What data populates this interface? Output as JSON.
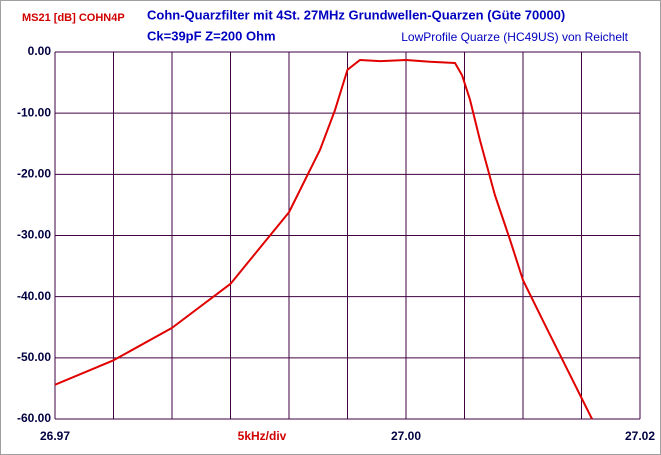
{
  "chart_data": {
    "type": "line",
    "title": "Cohn-Quarzfilter mit 4St.  27MHz Grundwellen-Quarzen (Güte 70000)",
    "subtitle": "Ck=39pF   Z=200 Ohm",
    "annotation": "LowProfile Quarze (HC49US) von Reichelt",
    "y_label": "MS21 [dB] COHN4P",
    "x_label": "5kHz/div",
    "x": [
      26.97,
      26.975,
      26.98,
      26.985,
      26.99,
      26.99265,
      26.99393,
      26.995,
      26.99607,
      26.99778,
      27.0,
      27.00205,
      27.00419,
      27.00479,
      27.00547,
      27.00632,
      27.0076,
      27.00889,
      27.01,
      27.01188,
      27.01402,
      27.0159
    ],
    "values": [
      -54.4,
      -50.4,
      -45.1,
      -37.9,
      -26.2,
      -16.0,
      -9.5,
      -2.9,
      -1.3,
      -1.5,
      -1.3,
      -1.6,
      -1.8,
      -3.8,
      -7.8,
      -14.4,
      -23.4,
      -30.7,
      -37.3,
      -44.6,
      -52.8,
      -60
    ],
    "color": "#e00000",
    "xlim": [
      26.97,
      27.02
    ],
    "ylim": [
      -60,
      0
    ],
    "xticks": [
      26.97,
      {
        "value": 26.975,
        "label": null
      },
      {
        "value": 26.98,
        "label": null
      },
      {
        "value": 26.985,
        "label": null
      },
      {
        "value": 26.99,
        "label": null
      },
      {
        "value": 26.995,
        "label": null
      },
      {
        "value": 27.0,
        "label": "27.00"
      },
      {
        "value": 27.005,
        "label": null
      },
      {
        "value": 27.01,
        "label": null
      },
      {
        "value": 27.015,
        "label": null
      },
      27.02
    ],
    "yticks": [
      {
        "value": 0,
        "label": "0.00"
      },
      {
        "value": -10,
        "label": "-10.00"
      },
      {
        "value": -20,
        "label": "-20.00"
      },
      {
        "value": -30,
        "label": "-30.00"
      },
      {
        "value": -40,
        "label": "-40.00"
      },
      {
        "value": -50,
        "label": "-50.00"
      },
      {
        "value": -60,
        "label": "-60.00"
      }
    ],
    "grid": true
  }
}
